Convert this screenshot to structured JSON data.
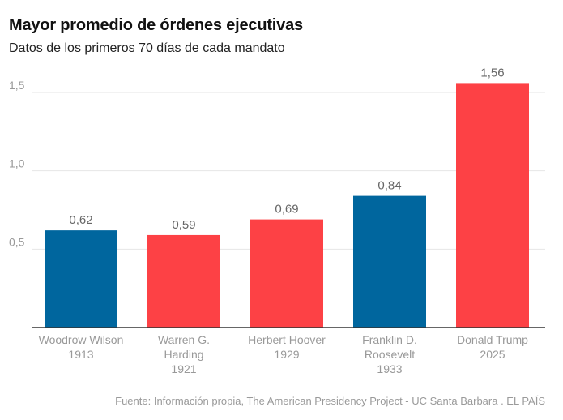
{
  "title": "Mayor promedio de órdenes ejecutivas",
  "subtitle": "Datos de los primeros 70 días de cada mandato",
  "source": "Fuente: Información propia, The American Presidency Project - UC Santa Barbara . EL PAÍS",
  "colors": {
    "democrat": "#00669e",
    "republican": "#fd4145"
  },
  "chart_data": {
    "type": "bar",
    "title": "Mayor promedio de órdenes ejecutivas",
    "subtitle": "Datos de los primeros 70 días de cada mandato",
    "xlabel": "",
    "ylabel": "",
    "ylim": [
      0,
      1.5
    ],
    "yticks": [
      0.5,
      1.0,
      1.5
    ],
    "ytick_labels": [
      "0,5",
      "1,0",
      "1,5"
    ],
    "grid": true,
    "categories": [
      [
        "Woodrow Wilson",
        "1913"
      ],
      [
        "Warren G.",
        "Harding",
        "1921"
      ],
      [
        "Herbert Hoover",
        "1929"
      ],
      [
        "Franklin D.",
        "Roosevelt",
        "1933"
      ],
      [
        "Donald Trump",
        "2025"
      ]
    ],
    "values": [
      0.62,
      0.59,
      0.69,
      0.84,
      1.56
    ],
    "value_labels": [
      "0,62",
      "0,59",
      "0,69",
      "0,84",
      "1,56"
    ],
    "bar_colors": [
      "#00669e",
      "#fd4145",
      "#fd4145",
      "#00669e",
      "#fd4145"
    ]
  }
}
